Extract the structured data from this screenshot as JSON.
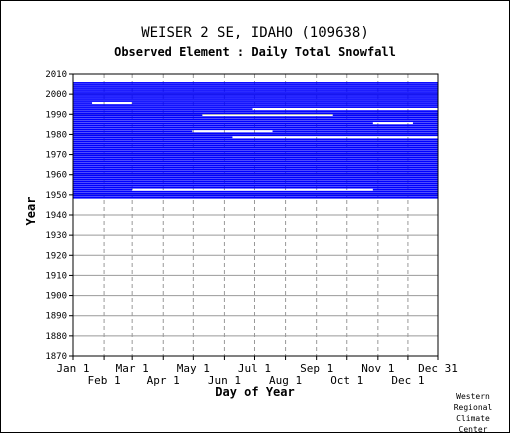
{
  "chart_data": {
    "type": "heatmap",
    "title": "WEISER 2 SE, IDAHO   (109638)",
    "subtitle": "Observed Element : Daily Total Snowfall",
    "xlabel": "Day of Year",
    "ylabel": "Year",
    "ylim": [
      1870,
      2010
    ],
    "y_ticks": [
      "1870",
      "1880",
      "1890",
      "1900",
      "1910",
      "1920",
      "1930",
      "1940",
      "1950",
      "1960",
      "1970",
      "1980",
      "1990",
      "2000",
      "2010"
    ],
    "x_ticks_upper": [
      "Jan 1",
      "Mar 1",
      "May 1",
      "Jul 1",
      "Sep 1",
      "Nov 1",
      "Dec 31"
    ],
    "x_ticks_lower": [
      "Feb 1",
      "Apr 1",
      "Jun 1",
      "Aug 1",
      "Oct 1",
      "Dec 1"
    ],
    "series_color": "#0000ff",
    "data_years": [
      1948,
      2005
    ],
    "records_present_day_range": [
      1,
      365
    ],
    "grid": "vertical-dashed-monthly, horizontal-solid-decadal",
    "credit": [
      "Western",
      "Regional",
      "Climate",
      "Center"
    ]
  }
}
